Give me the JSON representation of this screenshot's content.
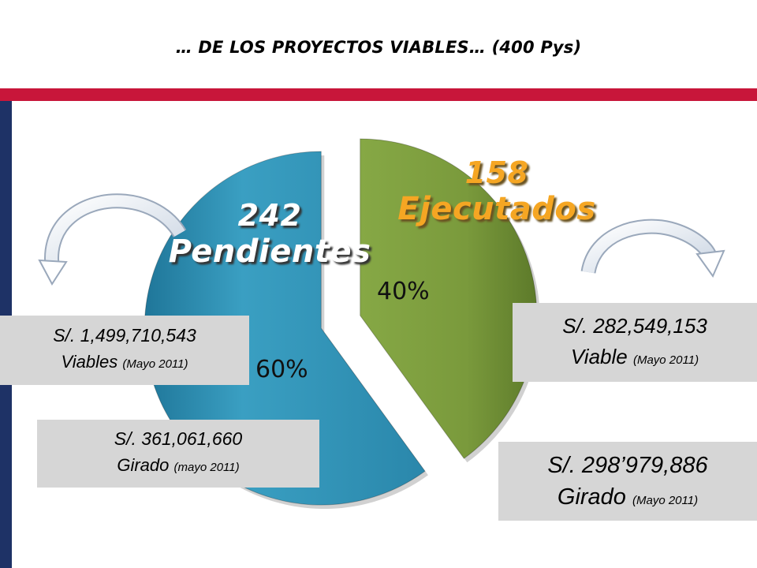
{
  "header": {
    "title": "… DE LOS  PROYECTOS VIABLES… (400 Pys)"
  },
  "chart_data": {
    "type": "pie",
    "exploded": true,
    "total_label": "400 Pys",
    "slices": [
      {
        "count": "158",
        "name": "Ejecutados",
        "value": 40,
        "percent_label": "40%",
        "color": "#7a9a3c"
      },
      {
        "count": "242",
        "name": "Pendientes",
        "value": 60,
        "percent_label": "60%",
        "color": "#2f8db0"
      }
    ]
  },
  "info_boxes": {
    "pendientes_viables": {
      "amount": "S/. 1,499,710,543",
      "label": "Viables",
      "date": "(Mayo 2011)"
    },
    "pendientes_girado": {
      "amount": "S/. 361,061,660",
      "label": "Girado",
      "date": "(mayo 2011)"
    },
    "ejecutados_viable": {
      "amount": "S/. 282,549,153",
      "label": "Viable",
      "date": "(Mayo 2011)"
    },
    "ejecutados_girado": {
      "amount": "S/. 298’979,886",
      "label": "Girado",
      "date": "(Mayo 2011)"
    }
  },
  "colors": {
    "accent_band": "#c8163a",
    "side_bar": "#1e3266",
    "slice_green": "#7a9a3c",
    "slice_blue": "#2f8db0",
    "label_orange": "#f5a623",
    "label_white": "#ffffff",
    "box_gray": "#d6d6d6"
  },
  "icons": [
    "curved-arrow-left-icon",
    "curved-arrow-right-icon"
  ]
}
